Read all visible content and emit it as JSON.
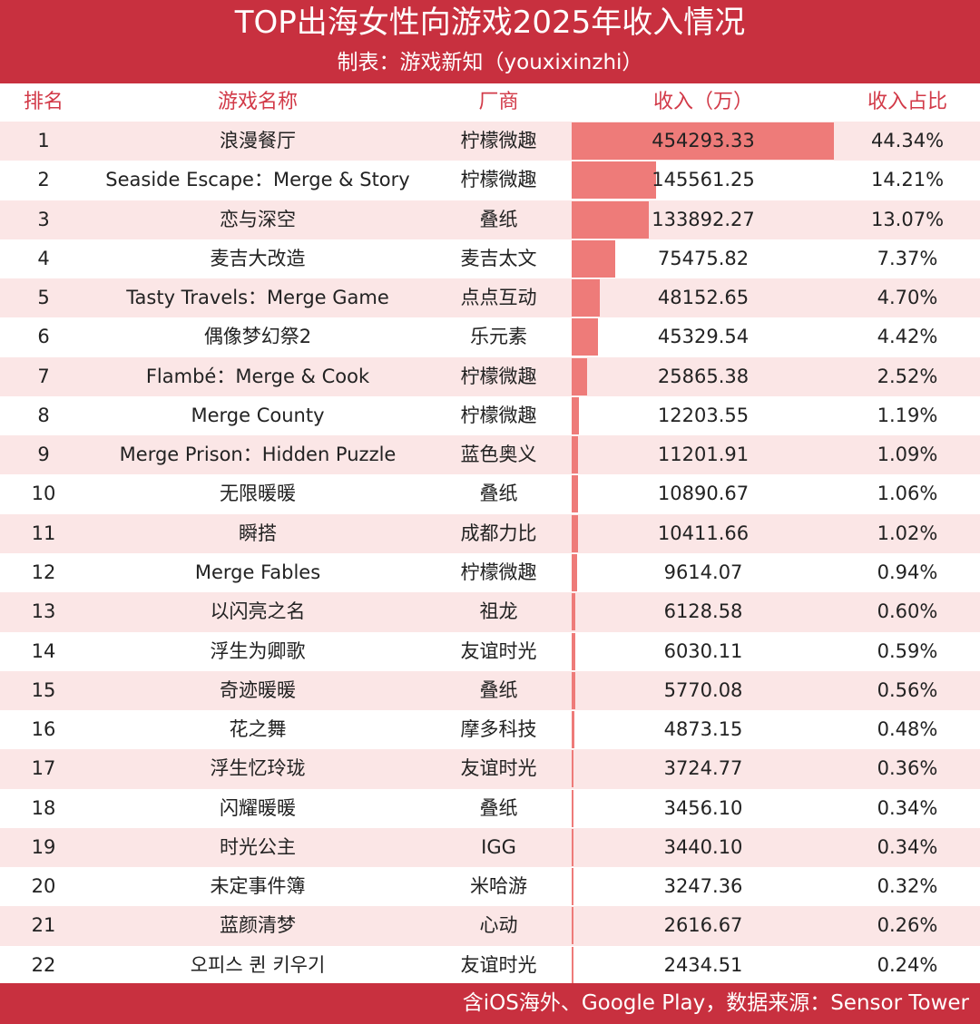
{
  "title": "TOP出海女性向游戏2025年收入情况",
  "subtitle": "制表：游戏新知（youxixinzhi）",
  "columns": {
    "rank": "排名",
    "name": "游戏名称",
    "vendor": "厂商",
    "revenue": "收入（万）",
    "share": "收入占比"
  },
  "footer": "含iOS海外、Google Play，数据来源：Sensor Tower",
  "colors": {
    "accent": "#c8303f",
    "bar": "#ee7b79",
    "row_shade": "#fbe6e6",
    "header_text": "#d23a48"
  },
  "chart_data": {
    "type": "table",
    "columns": [
      "排名",
      "游戏名称",
      "厂商",
      "收入（万）",
      "收入占比"
    ],
    "bar_max": 454293.33,
    "rows": [
      {
        "rank": "1",
        "name": "浪漫餐厅",
        "vendor": "柠檬微趣",
        "revenue": "454293.33",
        "value": 454293.33,
        "share": "44.34%"
      },
      {
        "rank": "2",
        "name": "Seaside Escape：Merge & Story",
        "vendor": "柠檬微趣",
        "revenue": "145561.25",
        "value": 145561.25,
        "share": "14.21%"
      },
      {
        "rank": "3",
        "name": "恋与深空",
        "vendor": "叠纸",
        "revenue": "133892.27",
        "value": 133892.27,
        "share": "13.07%"
      },
      {
        "rank": "4",
        "name": "麦吉大改造",
        "vendor": "麦吉太文",
        "revenue": "75475.82",
        "value": 75475.82,
        "share": "7.37%"
      },
      {
        "rank": "5",
        "name": "Tasty Travels：Merge Game",
        "vendor": "点点互动",
        "revenue": "48152.65",
        "value": 48152.65,
        "share": "4.70%"
      },
      {
        "rank": "6",
        "name": "偶像梦幻祭2",
        "vendor": "乐元素",
        "revenue": "45329.54",
        "value": 45329.54,
        "share": "4.42%"
      },
      {
        "rank": "7",
        "name": "Flambé：Merge & Cook",
        "vendor": "柠檬微趣",
        "revenue": "25865.38",
        "value": 25865.38,
        "share": "2.52%"
      },
      {
        "rank": "8",
        "name": "Merge County",
        "vendor": "柠檬微趣",
        "revenue": "12203.55",
        "value": 12203.55,
        "share": "1.19%"
      },
      {
        "rank": "9",
        "name": "Merge Prison：Hidden Puzzle",
        "vendor": "蓝色奥义",
        "revenue": "11201.91",
        "value": 11201.91,
        "share": "1.09%"
      },
      {
        "rank": "10",
        "name": "无限暖暖",
        "vendor": "叠纸",
        "revenue": "10890.67",
        "value": 10890.67,
        "share": "1.06%"
      },
      {
        "rank": "11",
        "name": "瞬搭",
        "vendor": "成都力比",
        "revenue": "10411.66",
        "value": 10411.66,
        "share": "1.02%"
      },
      {
        "rank": "12",
        "name": "Merge Fables",
        "vendor": "柠檬微趣",
        "revenue": "9614.07",
        "value": 9614.07,
        "share": "0.94%"
      },
      {
        "rank": "13",
        "name": "以闪亮之名",
        "vendor": "祖龙",
        "revenue": "6128.58",
        "value": 6128.58,
        "share": "0.60%"
      },
      {
        "rank": "14",
        "name": "浮生为卿歌",
        "vendor": "友谊时光",
        "revenue": "6030.11",
        "value": 6030.11,
        "share": "0.59%"
      },
      {
        "rank": "15",
        "name": "奇迹暖暖",
        "vendor": "叠纸",
        "revenue": "5770.08",
        "value": 5770.08,
        "share": "0.56%"
      },
      {
        "rank": "16",
        "name": "花之舞",
        "vendor": "摩多科技",
        "revenue": "4873.15",
        "value": 4873.15,
        "share": "0.48%"
      },
      {
        "rank": "17",
        "name": "浮生忆玲珑",
        "vendor": "友谊时光",
        "revenue": "3724.77",
        "value": 3724.77,
        "share": "0.36%"
      },
      {
        "rank": "18",
        "name": "闪耀暖暖",
        "vendor": "叠纸",
        "revenue": "3456.10",
        "value": 3456.1,
        "share": "0.34%"
      },
      {
        "rank": "19",
        "name": "时光公主",
        "vendor": "IGG",
        "revenue": "3440.10",
        "value": 3440.1,
        "share": "0.34%"
      },
      {
        "rank": "20",
        "name": "未定事件簿",
        "vendor": "米哈游",
        "revenue": "3247.36",
        "value": 3247.36,
        "share": "0.32%"
      },
      {
        "rank": "21",
        "name": "蓝颜清梦",
        "vendor": "心动",
        "revenue": "2616.67",
        "value": 2616.67,
        "share": "0.26%"
      },
      {
        "rank": "22",
        "name": "오피스 퀸 키우기",
        "vendor": "友谊时光",
        "revenue": "2434.51",
        "value": 2434.51,
        "share": "0.24%"
      }
    ]
  }
}
